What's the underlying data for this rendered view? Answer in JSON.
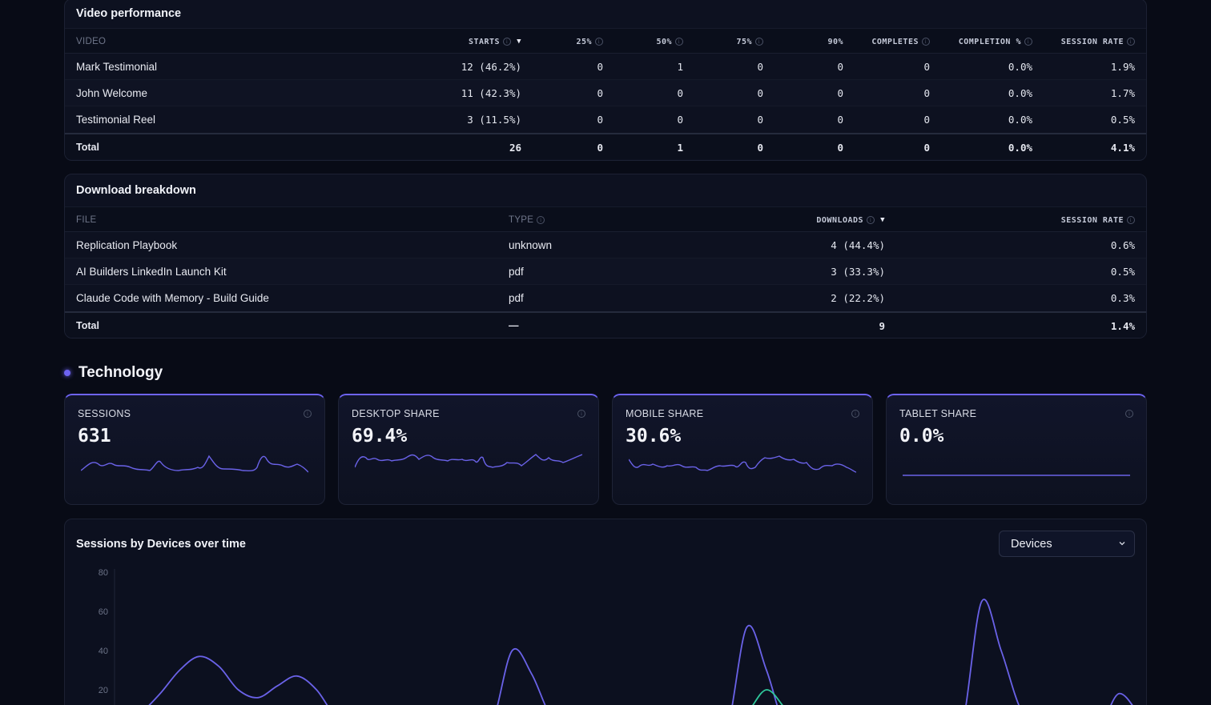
{
  "video": {
    "title": "Video performance",
    "columns": {
      "video": "VIDEO",
      "starts": "STARTS",
      "p25": "25%",
      "p50": "50%",
      "p75": "75%",
      "p90": "90%",
      "completes": "COMPLETES",
      "completion": "COMPLETION %",
      "session_rate": "SESSION RATE"
    },
    "sort_indicator": "▼",
    "rows": [
      {
        "name": "Mark Testimonial",
        "starts": "12 (46.2%)",
        "p25": "0",
        "p50": "1",
        "p75": "0",
        "p90": "0",
        "completes": "0",
        "completion": "0.0%",
        "session_rate": "1.9%"
      },
      {
        "name": "John Welcome",
        "starts": "11 (42.3%)",
        "p25": "0",
        "p50": "0",
        "p75": "0",
        "p90": "0",
        "completes": "0",
        "completion": "0.0%",
        "session_rate": "1.7%"
      },
      {
        "name": "Testimonial Reel",
        "starts": "3 (11.5%)",
        "p25": "0",
        "p50": "0",
        "p75": "0",
        "p90": "0",
        "completes": "0",
        "completion": "0.0%",
        "session_rate": "0.5%"
      }
    ],
    "total": {
      "label": "Total",
      "starts": "26",
      "p25": "0",
      "p50": "1",
      "p75": "0",
      "p90": "0",
      "completes": "0",
      "completion": "0.0%",
      "session_rate": "4.1%"
    }
  },
  "downloads": {
    "title": "Download breakdown",
    "columns": {
      "file": "FILE",
      "type": "TYPE",
      "downloads": "DOWNLOADS",
      "session_rate": "SESSION RATE"
    },
    "sort_indicator": "▼",
    "rows": [
      {
        "file": "Replication Playbook",
        "type": "unknown",
        "downloads": "4 (44.4%)",
        "session_rate": "0.6%"
      },
      {
        "file": "AI Builders LinkedIn Launch Kit",
        "type": "pdf",
        "downloads": "3 (33.3%)",
        "session_rate": "0.5%"
      },
      {
        "file": "Claude Code with Memory - Build Guide",
        "type": "pdf",
        "downloads": "2 (22.2%)",
        "session_rate": "0.3%"
      }
    ],
    "total": {
      "label": "Total",
      "type": "—",
      "downloads": "9",
      "session_rate": "1.4%"
    }
  },
  "technology": {
    "title": "Technology",
    "cards": [
      {
        "label": "SESSIONS",
        "value": "631"
      },
      {
        "label": "DESKTOP SHARE",
        "value": "69.4%"
      },
      {
        "label": "MOBILE SHARE",
        "value": "30.6%"
      },
      {
        "label": "TABLET SHARE",
        "value": "0.0%"
      }
    ]
  },
  "sessions_chart": {
    "title": "Sessions by Devices over time",
    "dropdown": {
      "selected": "Devices"
    }
  },
  "colors": {
    "accent": "#6e64f4",
    "desktop_series": "#6a62e8",
    "mobile_series": "#2fc79a"
  },
  "icons": {
    "info": "info-circle-icon",
    "sort": "sort-desc-icon",
    "dropdown": "chevron-down-icon"
  },
  "chart_data": {
    "type": "area",
    "title": "Sessions by Devices over time",
    "ylabel": "",
    "xlabel": "",
    "ylim": [
      0,
      80
    ],
    "yticks": [
      "80",
      "60",
      "40",
      "20"
    ],
    "series": [
      {
        "values": [
          2,
          8,
          18,
          30,
          37,
          32,
          20,
          16,
          22,
          27,
          20,
          6,
          2,
          1,
          2,
          0,
          0,
          0,
          0,
          4,
          40,
          28,
          6,
          0,
          0,
          0,
          0,
          0,
          0,
          0,
          0,
          1,
          52,
          30,
          0,
          0,
          0,
          0,
          0,
          0,
          0,
          0,
          0,
          2,
          65,
          40,
          10,
          0,
          2,
          0,
          0,
          18,
          8
        ]
      },
      {
        "values": [
          0,
          0,
          0,
          0,
          0,
          4,
          8,
          6,
          2,
          0,
          0,
          0,
          0,
          0,
          0,
          0,
          0,
          0,
          0,
          0,
          0,
          0,
          0,
          0,
          0,
          0,
          0,
          0,
          0,
          0,
          0,
          0,
          8,
          20,
          10,
          0,
          0,
          0,
          0,
          0,
          0,
          0,
          0,
          0,
          0,
          0,
          0,
          0,
          0,
          0,
          0,
          0,
          0
        ]
      }
    ]
  }
}
